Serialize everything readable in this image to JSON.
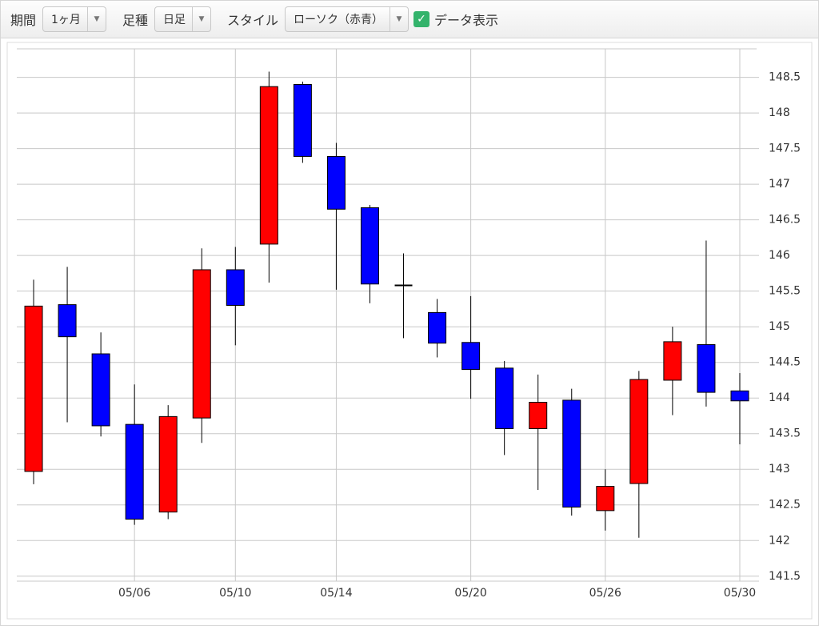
{
  "controls": {
    "period_label": "期間",
    "period_value": "1ヶ月",
    "bar_label": "足種",
    "bar_value": "日足",
    "style_label": "スタイル",
    "style_value": "ローソク（赤青）",
    "show_data_label": "データ表示",
    "show_data_checked": true
  },
  "chart_data": {
    "type": "candlestick",
    "categories": [
      null,
      null,
      null,
      "05/06",
      null,
      null,
      "05/10",
      null,
      null,
      "05/14",
      null,
      null,
      null,
      "05/20",
      null,
      null,
      null,
      "05/26",
      null,
      null,
      null,
      "05/30"
    ],
    "open": [
      142.97,
      145.31,
      144.62,
      143.63,
      142.4,
      143.72,
      145.8,
      146.16,
      148.4,
      147.39,
      146.67,
      145.58,
      145.2,
      144.78,
      144.42,
      143.57,
      143.97,
      142.42,
      142.8,
      144.25,
      144.75,
      144.1
    ],
    "high": [
      145.66,
      145.84,
      144.92,
      144.19,
      143.9,
      146.1,
      146.12,
      148.58,
      148.44,
      147.58,
      146.71,
      146.03,
      145.39,
      145.43,
      144.52,
      144.33,
      144.13,
      143.0,
      144.38,
      145.0,
      146.21,
      144.35
    ],
    "low": [
      142.79,
      143.66,
      143.46,
      142.22,
      142.3,
      143.37,
      144.74,
      145.62,
      147.3,
      145.52,
      145.33,
      144.84,
      144.57,
      143.99,
      143.2,
      142.71,
      142.35,
      142.14,
      142.04,
      143.76,
      143.88,
      143.35
    ],
    "close": [
      145.29,
      144.86,
      143.61,
      142.3,
      143.74,
      145.8,
      145.3,
      148.37,
      147.39,
      146.65,
      145.6,
      145.58,
      144.77,
      144.4,
      143.57,
      143.94,
      142.47,
      142.76,
      144.26,
      144.79,
      144.08,
      143.96
    ],
    "up_color": "#ff0000",
    "down_color": "#0000ff",
    "flat_color": "#000000",
    "ylim": [
      141.43,
      148.9
    ],
    "yticks": [
      141.5,
      142,
      142.5,
      143,
      143.5,
      144,
      144.5,
      145,
      145.5,
      146,
      146.5,
      147,
      147.5,
      148,
      148.5
    ],
    "grid": true
  }
}
